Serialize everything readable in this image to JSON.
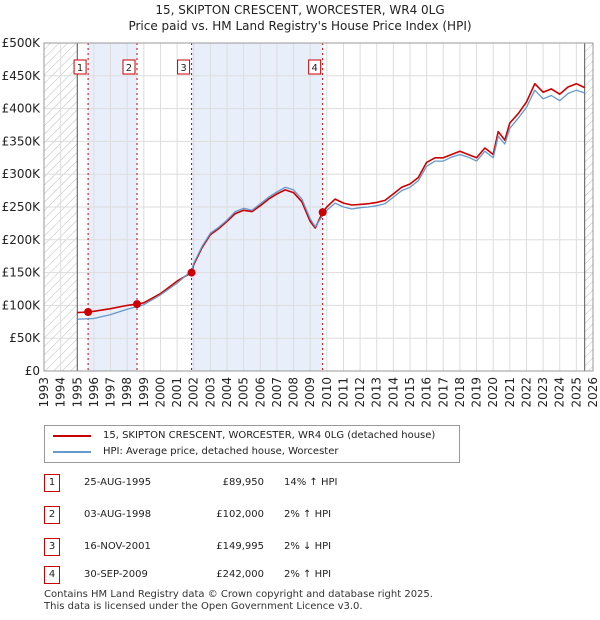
{
  "title_line1": "15, SKIPTON CRESCENT, WORCESTER, WR4 0LG",
  "title_line2": "Price paid vs. HM Land Registry's House Price Index (HPI)",
  "legend": {
    "property_label": "15, SKIPTON CRESCENT, WORCESTER, WR4 0LG (detached house)",
    "hpi_label": "HPI: Average price, detached house, Worcester",
    "property_color": "#cc0000",
    "hpi_color": "#6699cc"
  },
  "sales": [
    {
      "num": "1",
      "date": "25-AUG-1995",
      "price": "£89,950",
      "hpi": "14% ↑ HPI"
    },
    {
      "num": "2",
      "date": "03-AUG-1998",
      "price": "£102,000",
      "hpi": "2% ↑ HPI"
    },
    {
      "num": "3",
      "date": "16-NOV-2001",
      "price": "£149,995",
      "hpi": "2% ↓ HPI"
    },
    {
      "num": "4",
      "date": "30-SEP-2009",
      "price": "£242,000",
      "hpi": "2% ↑ HPI"
    }
  ],
  "footer_line1": "Contains HM Land Registry data © Crown copyright and database right 2025.",
  "footer_line2": "This data is licensed under the Open Government Licence v3.0.",
  "chart_data": {
    "type": "line",
    "title": "15, SKIPTON CRESCENT, WORCESTER, WR4 0LG",
    "subtitle": "Price paid vs. HM Land Registry's House Price Index (HPI)",
    "xlabel": "",
    "ylabel": "",
    "xlim": [
      1993,
      2026
    ],
    "ylim": [
      0,
      500000
    ],
    "x_ticks": [
      1993,
      1994,
      1995,
      1996,
      1997,
      1998,
      1999,
      2000,
      2001,
      2002,
      2003,
      2004,
      2005,
      2006,
      2007,
      2008,
      2009,
      2010,
      2011,
      2012,
      2013,
      2014,
      2015,
      2016,
      2017,
      2018,
      2019,
      2020,
      2021,
      2022,
      2023,
      2024,
      2025,
      2026
    ],
    "y_ticks": [
      0,
      50000,
      100000,
      150000,
      200000,
      250000,
      300000,
      350000,
      400000,
      450000,
      500000
    ],
    "y_tick_labels": [
      "£0",
      "£50K",
      "£100K",
      "£150K",
      "£200K",
      "£250K",
      "£300K",
      "£350K",
      "£400K",
      "£450K",
      "£500K"
    ],
    "data_start": 1995.0,
    "data_end": 2025.5,
    "grid": true,
    "shaded_spans": [
      [
        1995.65,
        1998.59
      ],
      [
        2001.87,
        2009.75
      ]
    ],
    "hatched_before": 1995.0,
    "hatched_after": 2025.5,
    "sale_markers": [
      {
        "label": "1",
        "x": 1995.65,
        "y": 89950
      },
      {
        "label": "2",
        "x": 1998.59,
        "y": 102000
      },
      {
        "label": "3",
        "x": 2001.87,
        "y": 149995
      },
      {
        "label": "4",
        "x": 2009.75,
        "y": 242000
      }
    ],
    "series": [
      {
        "name": "15, SKIPTON CRESCENT, WORCESTER, WR4 0LG (detached house)",
        "color": "#cc0000",
        "x": [
          1995.0,
          1995.65,
          1996.0,
          1997.0,
          1998.0,
          1998.59,
          1999.0,
          2000.0,
          2001.0,
          2001.87,
          2002.0,
          2002.5,
          2003.0,
          2003.5,
          2004.0,
          2004.5,
          2005.0,
          2005.5,
          2006.0,
          2006.5,
          2007.0,
          2007.5,
          2008.0,
          2008.5,
          2009.0,
          2009.3,
          2009.75,
          2010.0,
          2010.5,
          2011.0,
          2011.5,
          2012.0,
          2012.5,
          2013.0,
          2013.5,
          2014.0,
          2014.5,
          2015.0,
          2015.5,
          2016.0,
          2016.5,
          2017.0,
          2017.5,
          2018.0,
          2018.5,
          2019.0,
          2019.5,
          2020.0,
          2020.3,
          2020.7,
          2021.0,
          2021.5,
          2022.0,
          2022.5,
          2023.0,
          2023.5,
          2024.0,
          2024.5,
          2025.0,
          2025.5
        ],
        "y": [
          89000,
          89950,
          91000,
          95000,
          100000,
          102000,
          104000,
          118000,
          137000,
          149995,
          162000,
          188000,
          208000,
          217000,
          228000,
          240000,
          245000,
          243000,
          252000,
          262000,
          270000,
          276000,
          272000,
          258000,
          228000,
          218000,
          242000,
          250000,
          262000,
          256000,
          253000,
          254000,
          255000,
          257000,
          260000,
          270000,
          280000,
          285000,
          295000,
          318000,
          325000,
          325000,
          330000,
          335000,
          330000,
          325000,
          340000,
          330000,
          365000,
          352000,
          378000,
          392000,
          410000,
          438000,
          425000,
          430000,
          422000,
          433000,
          438000,
          432000
        ]
      },
      {
        "name": "HPI: Average price, detached house, Worcester",
        "color": "#6699cc",
        "x": [
          1995.0,
          1996.0,
          1997.0,
          1998.0,
          1999.0,
          2000.0,
          2001.0,
          2001.87,
          2002.0,
          2002.5,
          2003.0,
          2003.5,
          2004.0,
          2004.5,
          2005.0,
          2005.5,
          2006.0,
          2006.5,
          2007.0,
          2007.5,
          2008.0,
          2008.5,
          2009.0,
          2009.3,
          2009.75,
          2010.0,
          2010.5,
          2011.0,
          2011.5,
          2012.0,
          2012.5,
          2013.0,
          2013.5,
          2014.0,
          2014.5,
          2015.0,
          2015.5,
          2016.0,
          2016.5,
          2017.0,
          2017.5,
          2018.0,
          2018.5,
          2019.0,
          2019.5,
          2020.0,
          2020.3,
          2020.7,
          2021.0,
          2021.5,
          2022.0,
          2022.5,
          2023.0,
          2023.5,
          2024.0,
          2024.5,
          2025.0,
          2025.5
        ],
        "y": [
          79000,
          80000,
          86000,
          94000,
          101000,
          116000,
          134000,
          153000,
          164000,
          190000,
          210000,
          219000,
          230000,
          243000,
          248000,
          245000,
          255000,
          265000,
          273000,
          280000,
          276000,
          262000,
          232000,
          220000,
          237000,
          245000,
          256000,
          250000,
          247000,
          249000,
          250000,
          252000,
          255000,
          265000,
          275000,
          280000,
          290000,
          312000,
          320000,
          320000,
          326000,
          330000,
          326000,
          320000,
          335000,
          325000,
          358000,
          346000,
          370000,
          385000,
          402000,
          428000,
          415000,
          420000,
          412000,
          423000,
          428000,
          424000
        ]
      }
    ]
  }
}
